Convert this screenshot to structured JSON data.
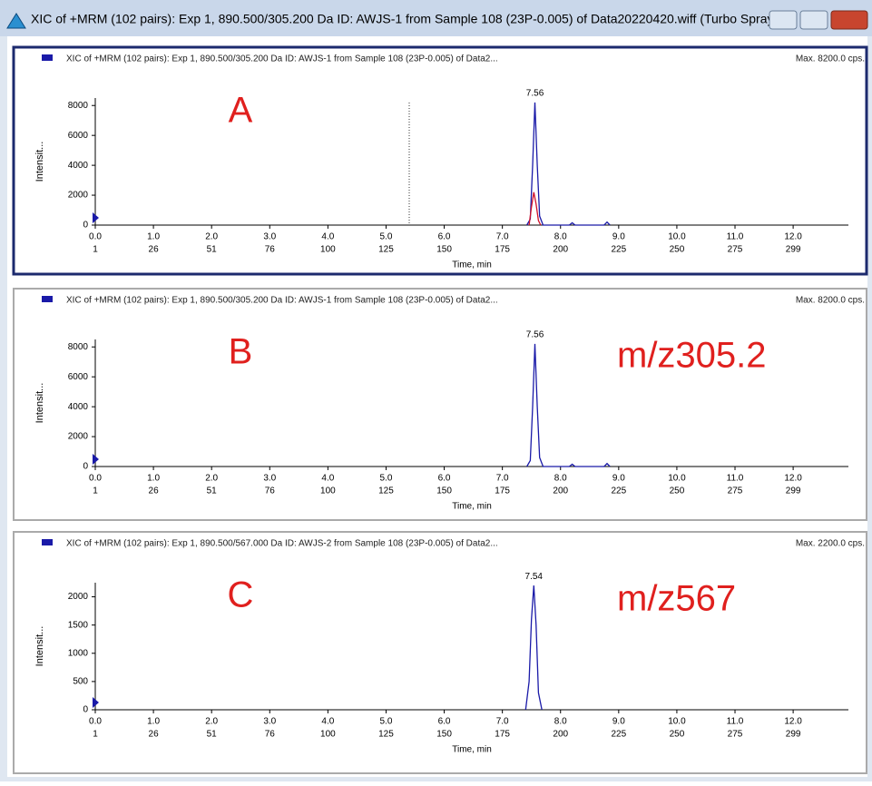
{
  "window": {
    "title": "XIC of +MRM (102 pairs): Exp 1, 890.500/305.200 Da ID: AWJS-1 from Sample 108 (23P-0.005) of Data20220420.wiff (Turbo Spray)"
  },
  "chart_data": [
    {
      "type": "line",
      "title": "XIC of +MRM (102 pairs): Exp 1, 890.500/305.200 Da ID: AWJS-1 from Sample 108 (23P-0.005) of Data2...",
      "max_label": "Max. 8200.0 cps.",
      "annotation": "A",
      "peak_label": 7.56,
      "x_label": "Time, min",
      "y_label": "Intensit...",
      "xlim": [
        0,
        12.95
      ],
      "ylim": [
        0,
        8500
      ],
      "xticks": [
        {
          "value": 0,
          "label": "0.0"
        },
        {
          "value": 1,
          "label": "1.0"
        },
        {
          "value": 2,
          "label": "2.0"
        },
        {
          "value": 3,
          "label": "3.0"
        },
        {
          "value": 4,
          "label": "4.0"
        },
        {
          "value": 5,
          "label": "5.0"
        },
        {
          "value": 6,
          "label": "6.0"
        },
        {
          "value": 7,
          "label": "7.0"
        },
        {
          "value": 8,
          "label": "8.0"
        },
        {
          "value": 9,
          "label": "9.0"
        },
        {
          "value": 10,
          "label": "10.0"
        },
        {
          "value": 11,
          "label": "11.0"
        },
        {
          "value": 12,
          "label": "12.0"
        }
      ],
      "x_cycle_labels": [
        1,
        26,
        51,
        76,
        100,
        125,
        150,
        175,
        200,
        225,
        250,
        275,
        299
      ],
      "yticks": [
        0,
        2000,
        4000,
        6000,
        8000
      ],
      "series": [
        {
          "color": "#1a1aa8",
          "x": [
            7.42,
            7.48,
            7.52,
            7.56,
            7.6,
            7.64,
            7.7,
            8.15,
            8.2,
            8.25,
            8.75,
            8.8,
            8.85
          ],
          "values": [
            0,
            400,
            4000,
            8200,
            4000,
            600,
            0,
            0,
            150,
            0,
            0,
            200,
            0
          ]
        },
        {
          "color": "#d0102a",
          "x": [
            7.46,
            7.5,
            7.54,
            7.58,
            7.62,
            7.66
          ],
          "values": [
            0,
            1200,
            2200,
            1400,
            300,
            0
          ]
        }
      ]
    },
    {
      "type": "line",
      "title": "XIC of +MRM (102 pairs): Exp 1, 890.500/305.200 Da ID: AWJS-1 from Sample 108 (23P-0.005) of Data2...",
      "max_label": "Max. 8200.0 cps.",
      "annotation": "B",
      "mz_label": "m/z305.2",
      "peak_label": 7.56,
      "x_label": "Time, min",
      "y_label": "Intensit...",
      "xlim": [
        0,
        12.95
      ],
      "ylim": [
        0,
        8500
      ],
      "xticks": [
        {
          "value": 0,
          "label": "0.0"
        },
        {
          "value": 1,
          "label": "1.0"
        },
        {
          "value": 2,
          "label": "2.0"
        },
        {
          "value": 3,
          "label": "3.0"
        },
        {
          "value": 4,
          "label": "4.0"
        },
        {
          "value": 5,
          "label": "5.0"
        },
        {
          "value": 6,
          "label": "6.0"
        },
        {
          "value": 7,
          "label": "7.0"
        },
        {
          "value": 8,
          "label": "8.0"
        },
        {
          "value": 9,
          "label": "9.0"
        },
        {
          "value": 10,
          "label": "10.0"
        },
        {
          "value": 11,
          "label": "11.0"
        },
        {
          "value": 12,
          "label": "12.0"
        }
      ],
      "x_cycle_labels": [
        1,
        26,
        51,
        76,
        100,
        125,
        150,
        175,
        200,
        225,
        250,
        275,
        299
      ],
      "yticks": [
        0,
        2000,
        4000,
        6000,
        8000
      ],
      "series": [
        {
          "color": "#1a1aa8",
          "x": [
            7.42,
            7.48,
            7.52,
            7.56,
            7.6,
            7.64,
            7.7,
            8.15,
            8.2,
            8.25,
            8.75,
            8.8,
            8.85
          ],
          "values": [
            0,
            400,
            4000,
            8200,
            4000,
            600,
            0,
            0,
            150,
            0,
            0,
            200,
            0
          ]
        }
      ]
    },
    {
      "type": "line",
      "title": "XIC of +MRM (102 pairs): Exp 1, 890.500/567.000 Da ID: AWJS-2 from Sample 108 (23P-0.005) of Data2...",
      "max_label": "Max. 2200.0 cps.",
      "annotation": "C",
      "mz_label": "m/z567",
      "peak_label": 7.54,
      "x_label": "Time, min",
      "y_label": "Intensit...",
      "xlim": [
        0,
        12.95
      ],
      "ylim": [
        0,
        2250
      ],
      "xticks": [
        {
          "value": 0,
          "label": "0.0"
        },
        {
          "value": 1,
          "label": "1.0"
        },
        {
          "value": 2,
          "label": "2.0"
        },
        {
          "value": 3,
          "label": "3.0"
        },
        {
          "value": 4,
          "label": "4.0"
        },
        {
          "value": 5,
          "label": "5.0"
        },
        {
          "value": 6,
          "label": "6.0"
        },
        {
          "value": 7,
          "label": "7.0"
        },
        {
          "value": 8,
          "label": "8.0"
        },
        {
          "value": 9,
          "label": "9.0"
        },
        {
          "value": 10,
          "label": "10.0"
        },
        {
          "value": 11,
          "label": "11.0"
        },
        {
          "value": 12,
          "label": "12.0"
        }
      ],
      "x_cycle_labels": [
        1,
        26,
        51,
        76,
        100,
        125,
        150,
        175,
        200,
        225,
        250,
        275,
        299
      ],
      "yticks": [
        0,
        500,
        1000,
        1500,
        2000
      ],
      "series": [
        {
          "color": "#1a1aa8",
          "x": [
            7.4,
            7.46,
            7.5,
            7.54,
            7.58,
            7.62,
            7.68
          ],
          "values": [
            0,
            500,
            1600,
            2200,
            1500,
            300,
            0
          ]
        }
      ]
    }
  ]
}
